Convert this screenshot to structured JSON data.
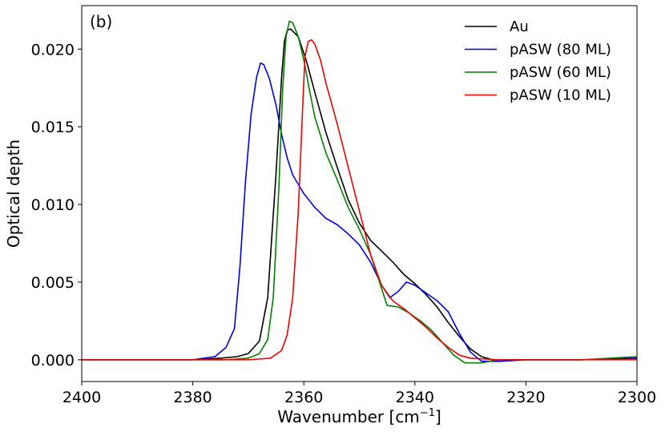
{
  "chart_data": {
    "type": "line",
    "panel_label": "(b)",
    "xlabel_main": "Wavenumber [cm",
    "xlabel_sup": "−1",
    "xlabel_end": "]",
    "ylabel": "Optical depth",
    "xlim": [
      2400,
      2300
    ],
    "ylim": [
      -0.0014,
      0.0228
    ],
    "x_ticks": [
      2400,
      2380,
      2360,
      2340,
      2320,
      2300
    ],
    "x_tick_labels": [
      "2400",
      "2380",
      "2360",
      "2340",
      "2320",
      "2300"
    ],
    "y_ticks": [
      0.0,
      0.005,
      0.01,
      0.015,
      0.02
    ],
    "y_tick_labels": [
      "0.000",
      "0.005",
      "0.010",
      "0.015",
      "0.020"
    ],
    "grid": false,
    "legend_position": "top-right",
    "series": [
      {
        "name": "Au",
        "color": "#000000",
        "points": [
          [
            2400,
            0.0
          ],
          [
            2390,
            0.0
          ],
          [
            2380,
            0.0
          ],
          [
            2375,
            0.0001
          ],
          [
            2372,
            0.0002
          ],
          [
            2370,
            0.0004
          ],
          [
            2368,
            0.0012
          ],
          [
            2366.5,
            0.004
          ],
          [
            2365,
            0.012
          ],
          [
            2364,
            0.0182
          ],
          [
            2363.5,
            0.0205
          ],
          [
            2363,
            0.0212
          ],
          [
            2362.4,
            0.0213
          ],
          [
            2361,
            0.0208
          ],
          [
            2359.5,
            0.0192
          ],
          [
            2358,
            0.0172
          ],
          [
            2356,
            0.0146
          ],
          [
            2354,
            0.0124
          ],
          [
            2352,
            0.0103
          ],
          [
            2350,
            0.0088
          ],
          [
            2348,
            0.0077
          ],
          [
            2346,
            0.007
          ],
          [
            2344,
            0.0063
          ],
          [
            2342,
            0.0055
          ],
          [
            2340,
            0.0049
          ],
          [
            2338,
            0.0042
          ],
          [
            2336,
            0.0034
          ],
          [
            2334,
            0.0024
          ],
          [
            2332,
            0.0015
          ],
          [
            2330,
            0.0007
          ],
          [
            2328,
            0.0002
          ],
          [
            2325,
            -0.0001
          ],
          [
            2320,
            0.0
          ],
          [
            2310,
            0.0
          ],
          [
            2300,
            0.0001
          ]
        ]
      },
      {
        "name": "pASW (80 ML)",
        "color": "#0000dd",
        "points": [
          [
            2400,
            0.0
          ],
          [
            2390,
            0.0
          ],
          [
            2380,
            0.0
          ],
          [
            2376,
            0.0002
          ],
          [
            2374,
            0.0008
          ],
          [
            2372.5,
            0.002
          ],
          [
            2371.5,
            0.006
          ],
          [
            2370.5,
            0.0115
          ],
          [
            2369.5,
            0.0158
          ],
          [
            2368.5,
            0.0182
          ],
          [
            2367.8,
            0.0191
          ],
          [
            2367.2,
            0.019
          ],
          [
            2366.2,
            0.0181
          ],
          [
            2365,
            0.0164
          ],
          [
            2364,
            0.0145
          ],
          [
            2363,
            0.013
          ],
          [
            2362,
            0.0119
          ],
          [
            2360,
            0.0107
          ],
          [
            2358,
            0.0098
          ],
          [
            2356,
            0.0091
          ],
          [
            2354,
            0.0087
          ],
          [
            2352,
            0.0081
          ],
          [
            2350,
            0.0074
          ],
          [
            2348,
            0.0063
          ],
          [
            2346,
            0.0048
          ],
          [
            2344.5,
            0.004
          ],
          [
            2343,
            0.0044
          ],
          [
            2341.5,
            0.005
          ],
          [
            2340,
            0.0048
          ],
          [
            2338,
            0.0043
          ],
          [
            2336,
            0.0038
          ],
          [
            2334,
            0.0031
          ],
          [
            2332,
            0.0017
          ],
          [
            2330,
            0.0005
          ],
          [
            2328,
            -0.0001
          ],
          [
            2325,
            -0.0001
          ],
          [
            2320,
            0.0
          ],
          [
            2310,
            0.0
          ],
          [
            2300,
            0.0001
          ]
        ]
      },
      {
        "name": "pASW (60 ML)",
        "color": "#007f00",
        "points": [
          [
            2400,
            0.0
          ],
          [
            2390,
            0.0
          ],
          [
            2380,
            0.0
          ],
          [
            2374,
            0.0
          ],
          [
            2370,
            0.0001
          ],
          [
            2368,
            0.0004
          ],
          [
            2366.5,
            0.0013
          ],
          [
            2365.5,
            0.004
          ],
          [
            2364.5,
            0.011
          ],
          [
            2363.8,
            0.0175
          ],
          [
            2363.2,
            0.0208
          ],
          [
            2362.6,
            0.0218
          ],
          [
            2362.0,
            0.0217
          ],
          [
            2361,
            0.0208
          ],
          [
            2360,
            0.0193
          ],
          [
            2359,
            0.0174
          ],
          [
            2358,
            0.0156
          ],
          [
            2356,
            0.0133
          ],
          [
            2354,
            0.0116
          ],
          [
            2352,
            0.0098
          ],
          [
            2350,
            0.0084
          ],
          [
            2348,
            0.0068
          ],
          [
            2346,
            0.0046
          ],
          [
            2345,
            0.0035
          ],
          [
            2343,
            0.0034
          ],
          [
            2341,
            0.003
          ],
          [
            2339,
            0.0025
          ],
          [
            2337,
            0.0019
          ],
          [
            2335,
            0.0011
          ],
          [
            2333,
            0.0003
          ],
          [
            2331,
            -0.0002
          ],
          [
            2328,
            -0.0002
          ],
          [
            2325,
            0.0
          ],
          [
            2320,
            0.0
          ],
          [
            2310,
            0.0
          ],
          [
            2300,
            0.0002
          ]
        ]
      },
      {
        "name": "pASW (10 ML)",
        "color": "#ee0000",
        "points": [
          [
            2400,
            0.0
          ],
          [
            2390,
            0.0
          ],
          [
            2380,
            0.0
          ],
          [
            2370,
            0.0
          ],
          [
            2366,
            0.0001
          ],
          [
            2364,
            0.0006
          ],
          [
            2363,
            0.0016
          ],
          [
            2362,
            0.004
          ],
          [
            2361,
            0.0095
          ],
          [
            2360.3,
            0.0155
          ],
          [
            2359.8,
            0.0195
          ],
          [
            2359.2,
            0.0205
          ],
          [
            2358.6,
            0.0206
          ],
          [
            2358,
            0.0203
          ],
          [
            2357,
            0.0193
          ],
          [
            2356,
            0.0178
          ],
          [
            2354,
            0.0152
          ],
          [
            2352,
            0.0124
          ],
          [
            2350,
            0.0096
          ],
          [
            2348,
            0.0068
          ],
          [
            2346,
            0.0048
          ],
          [
            2344,
            0.0038
          ],
          [
            2342,
            0.0033
          ],
          [
            2340,
            0.0027
          ],
          [
            2338,
            0.0021
          ],
          [
            2336,
            0.0014
          ],
          [
            2334,
            0.0008
          ],
          [
            2332,
            0.0003
          ],
          [
            2330,
            0.0001
          ],
          [
            2325,
            0.0
          ],
          [
            2320,
            0.0
          ],
          [
            2310,
            0.0
          ],
          [
            2300,
            0.0
          ]
        ]
      }
    ]
  }
}
